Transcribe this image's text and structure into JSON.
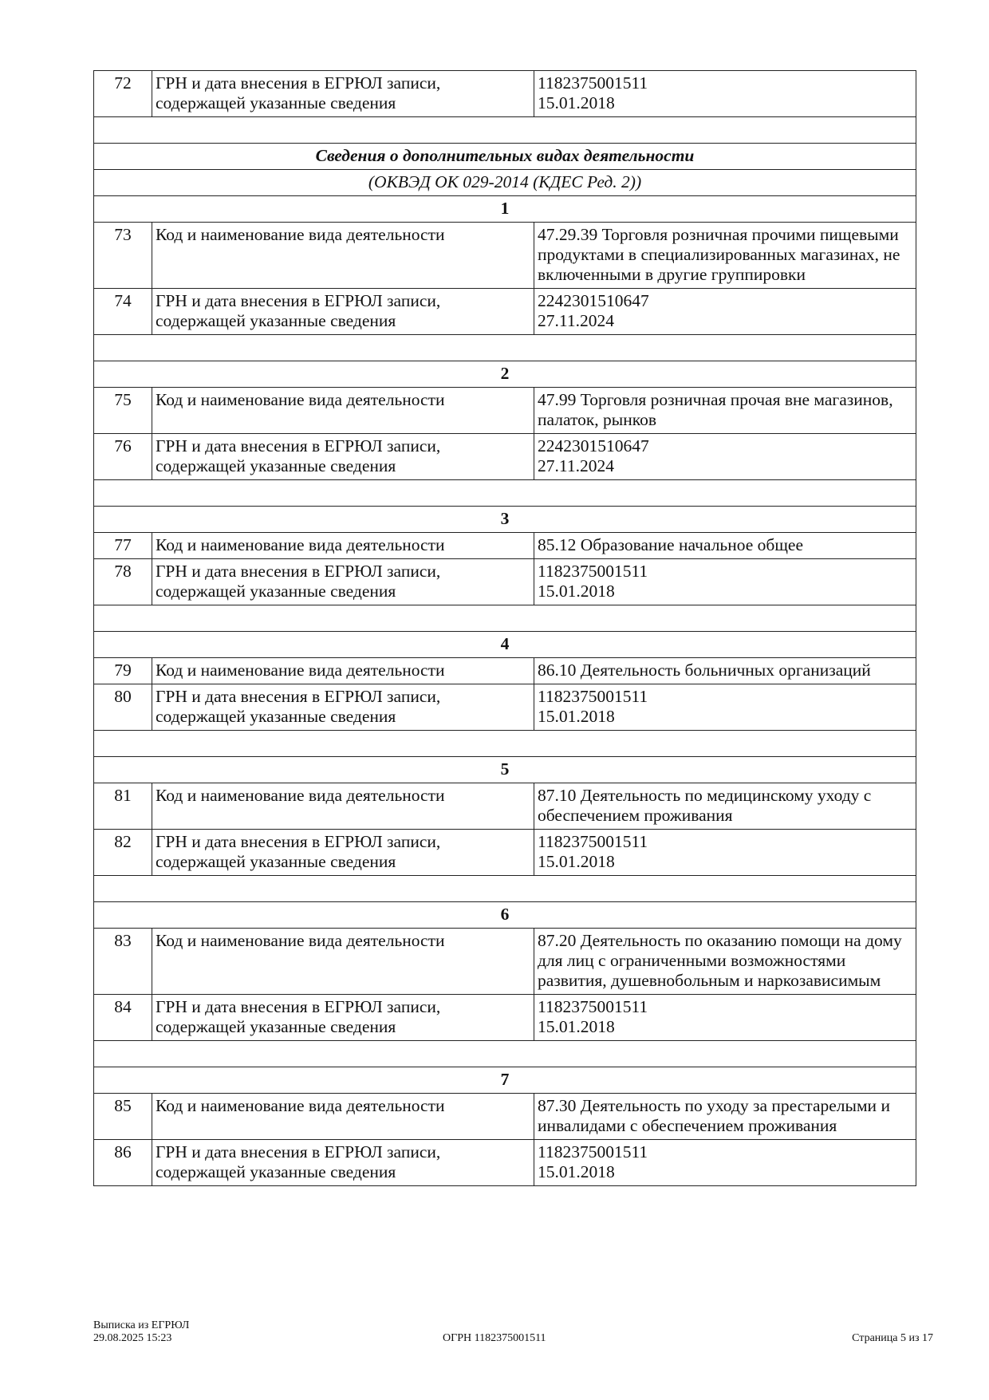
{
  "rows": [
    {
      "type": "item",
      "num": "72",
      "label": "ГРН и дата внесения в ЕГРЮЛ записи, содержащей указанные сведения",
      "value": [
        "1182375001511",
        "15.01.2018"
      ]
    },
    {
      "type": "blank"
    },
    {
      "type": "title",
      "text": "Сведения о дополнительных видах деятельности"
    },
    {
      "type": "subtitle",
      "text": "(ОКВЭД ОК 029-2014 (КДЕС Ред. 2))"
    },
    {
      "type": "group",
      "text": "1"
    },
    {
      "type": "item",
      "num": "73",
      "label": "Код и наименование вида деятельности",
      "value": [
        "47.29.39 Торговля розничная прочими пищевыми продуктами в специализированных магазинах, не включенными в другие группировки"
      ]
    },
    {
      "type": "item",
      "num": "74",
      "label": "ГРН и дата внесения в ЕГРЮЛ записи, содержащей указанные сведения",
      "value": [
        "2242301510647",
        "27.11.2024"
      ]
    },
    {
      "type": "blank"
    },
    {
      "type": "group",
      "text": "2"
    },
    {
      "type": "item",
      "num": "75",
      "label": "Код и наименование вида деятельности",
      "value": [
        "47.99 Торговля розничная прочая вне магазинов, палаток, рынков"
      ]
    },
    {
      "type": "item",
      "num": "76",
      "label": "ГРН и дата внесения в ЕГРЮЛ записи, содержащей указанные сведения",
      "value": [
        "2242301510647",
        "27.11.2024"
      ]
    },
    {
      "type": "blank"
    },
    {
      "type": "group",
      "text": "3"
    },
    {
      "type": "item",
      "num": "77",
      "label": "Код и наименование вида деятельности",
      "value": [
        "85.12 Образование начальное общее"
      ]
    },
    {
      "type": "item",
      "num": "78",
      "label": "ГРН и дата внесения в ЕГРЮЛ записи, содержащей указанные сведения",
      "value": [
        "1182375001511",
        "15.01.2018"
      ]
    },
    {
      "type": "blank"
    },
    {
      "type": "group",
      "text": "4"
    },
    {
      "type": "item",
      "num": "79",
      "label": "Код и наименование вида деятельности",
      "value": [
        "86.10 Деятельность больничных организаций"
      ]
    },
    {
      "type": "item",
      "num": "80",
      "label": "ГРН и дата внесения в ЕГРЮЛ записи, содержащей указанные сведения",
      "value": [
        "1182375001511",
        "15.01.2018"
      ]
    },
    {
      "type": "blank"
    },
    {
      "type": "group",
      "text": "5"
    },
    {
      "type": "item",
      "num": "81",
      "label": "Код и наименование вида деятельности",
      "value": [
        "87.10 Деятельность по медицинскому уходу с обеспечением проживания"
      ]
    },
    {
      "type": "item",
      "num": "82",
      "label": "ГРН и дата внесения в ЕГРЮЛ записи, содержащей указанные сведения",
      "value": [
        "1182375001511",
        "15.01.2018"
      ]
    },
    {
      "type": "blank"
    },
    {
      "type": "group",
      "text": "6"
    },
    {
      "type": "item",
      "num": "83",
      "label": "Код и наименование вида деятельности",
      "value": [
        "87.20 Деятельность по оказанию помощи на дому для лиц с ограниченными возможностями развития, душевнобольным и наркозависимым"
      ]
    },
    {
      "type": "item",
      "num": "84",
      "label": "ГРН и дата внесения в ЕГРЮЛ записи, содержащей указанные сведения",
      "value": [
        "1182375001511",
        "15.01.2018"
      ]
    },
    {
      "type": "blank"
    },
    {
      "type": "group",
      "text": "7"
    },
    {
      "type": "item",
      "num": "85",
      "label": "Код и наименование вида деятельности",
      "value": [
        "87.30 Деятельность по уходу за престарелыми и инвалидами с обеспечением проживания"
      ]
    },
    {
      "type": "item",
      "num": "86",
      "label": "ГРН и дата внесения в ЕГРЮЛ записи, содержащей указанные сведения",
      "value": [
        "1182375001511",
        "15.01.2018"
      ]
    }
  ],
  "footer": {
    "doc_name": "Выписка из ЕГРЮЛ",
    "datetime": "29.08.2025 15:23",
    "ogrn": "ОГРН 1182375001511",
    "page": "Страница 5 из 17"
  }
}
